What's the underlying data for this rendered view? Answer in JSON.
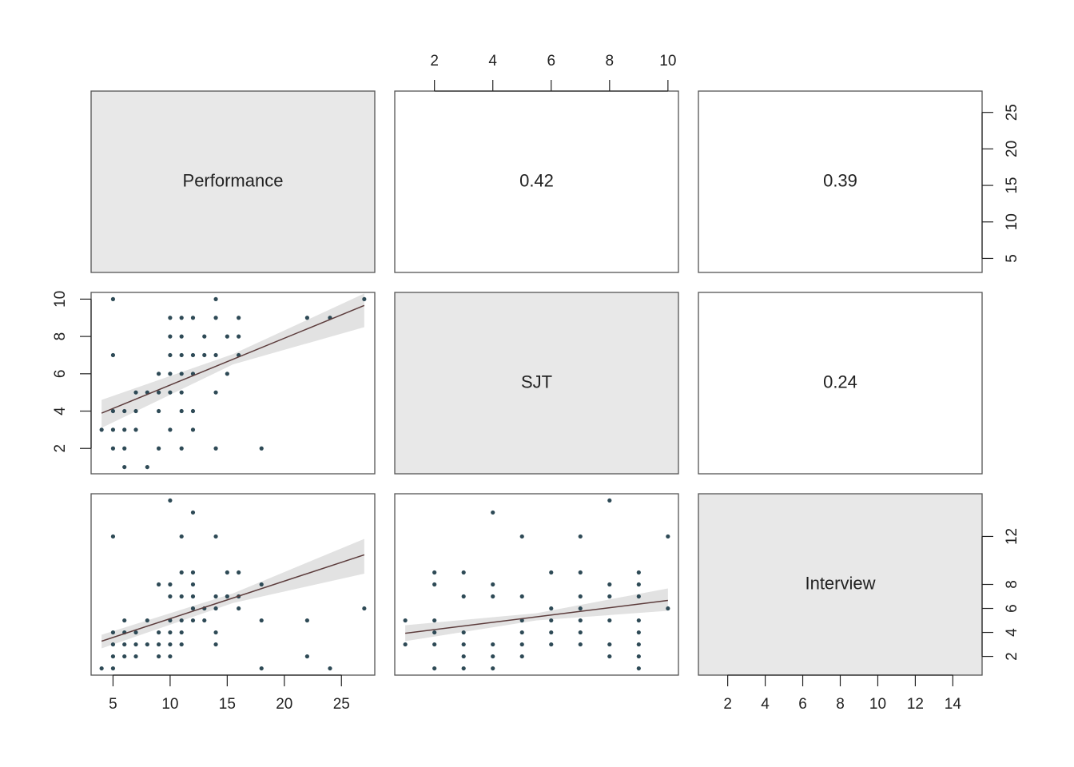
{
  "chart_data": {
    "type": "scatter_matrix",
    "variables": [
      "Performance",
      "SJT",
      "Interview"
    ],
    "limits": [
      [
        3.08,
        27.92
      ],
      [
        0.64,
        10.36
      ],
      [
        0.44,
        15.56
      ]
    ],
    "point_color": "#2e4a56",
    "fit_color": "#5c3c3c",
    "band_color": "#e2e2e2",
    "diagonal_color": "#e8e8e8",
    "axes": [
      {
        "side": "top",
        "index": 1,
        "ticks": [
          2,
          4,
          6,
          8,
          10
        ]
      },
      {
        "side": "right",
        "index": 0,
        "ticks": [
          5,
          10,
          15,
          20,
          25
        ]
      },
      {
        "side": "left",
        "index": 1,
        "ticks": [
          2,
          4,
          6,
          8,
          10
        ]
      },
      {
        "side": "right",
        "index": 2,
        "ticks": [
          2,
          4,
          6,
          8,
          12
        ]
      },
      {
        "side": "bottom",
        "index": 0,
        "ticks": [
          5,
          10,
          15,
          20,
          25
        ]
      },
      {
        "side": "bottom",
        "index": 2,
        "ticks": [
          2,
          4,
          6,
          8,
          10,
          12,
          14
        ]
      }
    ],
    "correlations": [
      {
        "row": 0,
        "col": 1,
        "value": 0.42
      },
      {
        "row": 0,
        "col": 2,
        "value": 0.39
      },
      {
        "row": 1,
        "col": 2,
        "value": 0.24
      }
    ],
    "panels": [
      {
        "row": 1,
        "col": 0,
        "x": [
          5,
          14,
          27,
          10,
          11,
          12,
          14,
          16,
          22,
          24,
          10,
          11,
          13,
          15,
          16,
          5,
          10,
          11,
          12,
          13,
          14,
          16,
          9,
          10,
          11,
          12,
          15,
          7,
          8,
          9,
          10,
          11,
          14,
          5,
          6,
          7,
          9,
          11,
          12,
          4,
          5,
          6,
          7,
          10,
          12,
          5,
          6,
          9,
          11,
          14,
          18,
          6,
          8
        ],
        "y": [
          10,
          10,
          10,
          9,
          9,
          9,
          9,
          9,
          9,
          9,
          8,
          8,
          8,
          8,
          8,
          7,
          7,
          7,
          7,
          7,
          7,
          7,
          6,
          6,
          6,
          6,
          6,
          5,
          5,
          5,
          5,
          5,
          5,
          4,
          4,
          4,
          4,
          4,
          4,
          3,
          3,
          3,
          3,
          3,
          3,
          2,
          2,
          2,
          2,
          2,
          2,
          1,
          1
        ],
        "fit": {
          "x": [
            4,
            27
          ],
          "y": [
            3.89,
            9.66
          ]
        },
        "band": {
          "x": [
            4,
            15.5,
            27
          ],
          "lower": [
            3.1,
            6.5,
            8.5
          ],
          "upper": [
            4.6,
            7.05,
            10.3
          ]
        }
      },
      {
        "row": 2,
        "col": 0,
        "x": [
          10,
          12,
          5,
          11,
          14,
          11,
          12,
          15,
          16,
          9,
          10,
          12,
          18,
          10,
          11,
          12,
          14,
          15,
          16,
          12,
          13,
          14,
          16,
          27,
          6,
          8,
          10,
          11,
          12,
          13,
          18,
          22,
          5,
          6,
          7,
          9,
          10,
          11,
          14,
          5,
          6,
          7,
          8,
          9,
          10,
          11,
          14,
          5,
          6,
          7,
          9,
          10,
          22,
          4,
          5,
          18,
          24
        ],
        "y": [
          15,
          14,
          12,
          12,
          12,
          9,
          9,
          9,
          9,
          8,
          8,
          8,
          8,
          7,
          7,
          7,
          7,
          7,
          7,
          6,
          6,
          6,
          6,
          6,
          5,
          5,
          5,
          5,
          5,
          5,
          5,
          5,
          4,
          4,
          4,
          4,
          4,
          4,
          4,
          3,
          3,
          3,
          3,
          3,
          3,
          3,
          3,
          2,
          2,
          2,
          2,
          2,
          2,
          1,
          1,
          1,
          1
        ],
        "fit": {
          "x": [
            4,
            27
          ],
          "y": [
            3.27,
            10.47
          ]
        },
        "band": {
          "x": [
            4,
            15.5,
            27
          ],
          "lower": [
            2.67,
            6.45,
            8.9
          ],
          "upper": [
            3.8,
            7.25,
            11.8
          ]
        }
      },
      {
        "row": 2,
        "col": 1,
        "x": [
          8,
          4,
          5,
          7,
          10,
          2,
          3,
          6,
          7,
          9,
          2,
          4,
          8,
          9,
          3,
          4,
          5,
          7,
          8,
          9,
          6,
          7,
          10,
          1,
          2,
          5,
          6,
          7,
          8,
          9,
          2,
          3,
          5,
          6,
          7,
          9,
          1,
          2,
          3,
          4,
          5,
          6,
          7,
          8,
          9,
          3,
          4,
          5,
          8,
          9,
          2,
          3,
          4,
          9
        ],
        "y": [
          15,
          14,
          12,
          12,
          12,
          9,
          9,
          9,
          9,
          9,
          8,
          8,
          8,
          8,
          7,
          7,
          7,
          7,
          7,
          7,
          6,
          6,
          6,
          5,
          5,
          5,
          5,
          5,
          5,
          5,
          4,
          4,
          4,
          4,
          4,
          4,
          3,
          3,
          3,
          3,
          3,
          3,
          3,
          3,
          3,
          2,
          2,
          2,
          2,
          2,
          1,
          1,
          1,
          1
        ],
        "fit": {
          "x": [
            1,
            10
          ],
          "y": [
            3.93,
            6.67
          ]
        },
        "band": {
          "x": [
            1,
            5.5,
            10
          ],
          "lower": [
            3.27,
            5.0,
            5.8
          ],
          "upper": [
            4.6,
            5.6,
            7.67
          ]
        }
      }
    ]
  }
}
